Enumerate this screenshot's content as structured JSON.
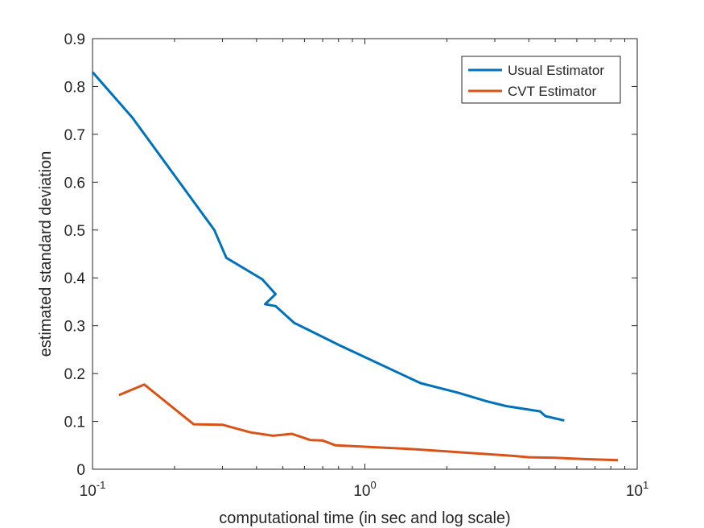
{
  "chart_data": {
    "type": "line",
    "xlabel": "computational time (in sec and log scale)",
    "ylabel": "estimated standard deviation",
    "xscale": "log",
    "xlim": [
      0.1,
      10
    ],
    "ylim": [
      0,
      0.9
    ],
    "grid": false,
    "legend_position": "top-right",
    "x_ticks": [
      {
        "value": 0.1,
        "base": "10",
        "exp": "-1"
      },
      {
        "value": 1,
        "base": "10",
        "exp": "0"
      },
      {
        "value": 10,
        "base": "10",
        "exp": "1"
      }
    ],
    "y_ticks": [
      {
        "value": 0,
        "label": "0"
      },
      {
        "value": 0.1,
        "label": "0.1"
      },
      {
        "value": 0.2,
        "label": "0.2"
      },
      {
        "value": 0.3,
        "label": "0.3"
      },
      {
        "value": 0.4,
        "label": "0.4"
      },
      {
        "value": 0.5,
        "label": "0.5"
      },
      {
        "value": 0.6,
        "label": "0.6"
      },
      {
        "value": 0.7,
        "label": "0.7"
      },
      {
        "value": 0.8,
        "label": "0.8"
      },
      {
        "value": 0.9,
        "label": "0.9"
      }
    ],
    "series": [
      {
        "name": "Usual Estimator",
        "color": "#0072BD",
        "x": [
          0.1,
          0.14,
          0.28,
          0.31,
          0.42,
          0.47,
          0.43,
          0.47,
          0.55,
          0.8,
          1.6,
          2.2,
          2.8,
          3.3,
          4.4,
          4.6,
          5.4
        ],
        "y": [
          0.83,
          0.735,
          0.5,
          0.442,
          0.397,
          0.366,
          0.345,
          0.341,
          0.306,
          0.26,
          0.18,
          0.16,
          0.142,
          0.132,
          0.121,
          0.111,
          0.102
        ]
      },
      {
        "name": "CVT Estimator",
        "color": "#D95319",
        "x": [
          0.125,
          0.155,
          0.235,
          0.3,
          0.38,
          0.46,
          0.54,
          0.63,
          0.7,
          0.78,
          1.5,
          3.5,
          4.0,
          5.0,
          6.5,
          8.5
        ],
        "y": [
          0.155,
          0.177,
          0.094,
          0.093,
          0.077,
          0.07,
          0.074,
          0.061,
          0.06,
          0.05,
          0.042,
          0.028,
          0.025,
          0.024,
          0.021,
          0.019
        ]
      }
    ]
  }
}
